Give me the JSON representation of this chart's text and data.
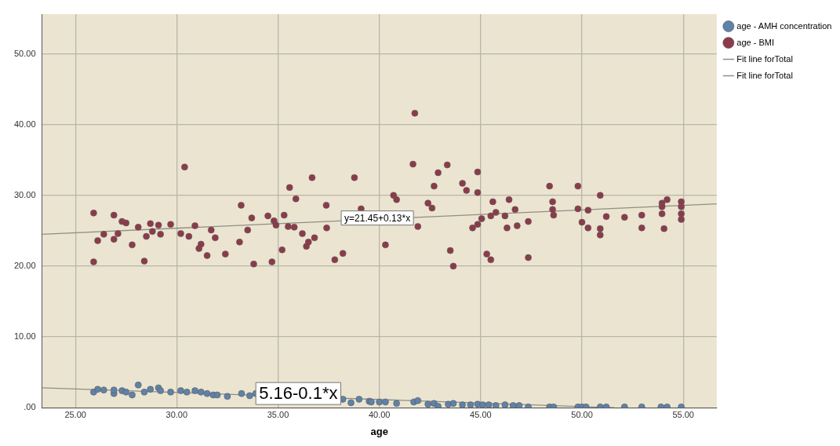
{
  "chart_data": {
    "type": "scatter",
    "xlabel": "age",
    "xlim": [
      23.35,
      56.65
    ],
    "ylim": [
      0,
      55.6
    ],
    "xticks": [
      {
        "value": 25,
        "label": "25.00"
      },
      {
        "value": 30,
        "label": "30.00"
      },
      {
        "value": 35,
        "label": "35.00"
      },
      {
        "value": 40,
        "label": "40.00"
      },
      {
        "value": 45,
        "label": "45.00"
      },
      {
        "value": 50,
        "label": "50.00"
      },
      {
        "value": 55,
        "label": "55.00"
      }
    ],
    "yticks": [
      {
        "value": 0,
        "label": ".00"
      },
      {
        "value": 10,
        "label": "10.00"
      },
      {
        "value": 20,
        "label": "20.00"
      },
      {
        "value": 30,
        "label": "30.00"
      },
      {
        "value": 40,
        "label": "40.00"
      },
      {
        "value": 50,
        "label": "50.00"
      }
    ],
    "grid": true,
    "legend": "top right",
    "marker": "circle",
    "series": [
      {
        "name": "age - AMH concentration",
        "color": "#5f82a8",
        "x": [
          25.9,
          26.1,
          26.4,
          26.9,
          26.9,
          27.3,
          27.5,
          27.8,
          28.1,
          28.4,
          28.7,
          29.1,
          29.2,
          29.7,
          30.2,
          30.5,
          30.9,
          31.2,
          31.5,
          31.8,
          32.0,
          32.5,
          33.2,
          33.6,
          33.9,
          38.2,
          38.6,
          39.0,
          39.5,
          39.6,
          40.0,
          40.3,
          40.85,
          41.7,
          41.9,
          42.4,
          42.7,
          42.9,
          43.4,
          43.65,
          44.1,
          44.5,
          44.85,
          45.1,
          45.4,
          45.75,
          46.2,
          46.6,
          46.9,
          47.35,
          48.4,
          48.6,
          49.8,
          50.0,
          50.2,
          50.9,
          51.2,
          52.1,
          52.95,
          53.9,
          54.2,
          54.9
        ],
        "values": [
          2.2,
          2.6,
          2.5,
          2.0,
          2.5,
          2.4,
          2.2,
          1.8,
          3.2,
          2.2,
          2.6,
          2.8,
          2.4,
          2.2,
          2.4,
          2.2,
          2.4,
          2.2,
          2.0,
          1.8,
          1.8,
          1.6,
          2.0,
          1.7,
          2.0,
          1.2,
          0.7,
          1.2,
          0.9,
          0.8,
          0.8,
          0.8,
          0.6,
          0.8,
          1.0,
          0.5,
          0.6,
          0.2,
          0.5,
          0.6,
          0.4,
          0.4,
          0.5,
          0.4,
          0.4,
          0.3,
          0.4,
          0.3,
          0.3,
          0.1,
          0.1,
          0.1,
          0.1,
          0.1,
          0.1,
          0.1,
          0.1,
          0.1,
          0.1,
          0.1,
          0.1,
          0.1
        ]
      },
      {
        "name": "age - BMI",
        "color": "#8c3b4b",
        "x": [
          30.39,
          36.68,
          38.77,
          35.57,
          35.88,
          33.18,
          37.38,
          25.9,
          26.9,
          27.3,
          27.5,
          28.1,
          28.7,
          29.1,
          29.7,
          30.9,
          31.7,
          33.5,
          33.7,
          34.5,
          34.8,
          34.9,
          35.3,
          35.5,
          35.8,
          37.4,
          39.1,
          40.7,
          25.9,
          26.1,
          26.4,
          26.9,
          27.1,
          27.8,
          28.5,
          28.4,
          28.8,
          29.2,
          30.2,
          30.6,
          31.2,
          31.1,
          31.5,
          31.9,
          32.4,
          33.1,
          33.8,
          34.7,
          35.2,
          36.2,
          36.4,
          36.5,
          36.8,
          37.8,
          38.2,
          40.3,
          41.75,
          41.66,
          42.9,
          43.35,
          44.85,
          42.7,
          44.1,
          44.3,
          44.85,
          40.85,
          42.4,
          42.6,
          41.9,
          45.6,
          46.4,
          46.7,
          46.2,
          45.75,
          45.5,
          45.05,
          44.85,
          44.6,
          46.3,
          46.8,
          47.35,
          48.4,
          49.8,
          50.9,
          48.55,
          48.55,
          48.6,
          49.8,
          50.3,
          50.0,
          50.3,
          50.9,
          50.9,
          51.2,
          52.1,
          52.95,
          52.95,
          53.95,
          54.2,
          53.95,
          53.95,
          54.05,
          54.9,
          54.9,
          54.9,
          54.9,
          43.5,
          43.65,
          45.3,
          45.5,
          47.35
        ],
        "values": [
          34.0,
          32.5,
          32.5,
          31.1,
          29.5,
          28.6,
          28.6,
          27.5,
          27.2,
          26.3,
          26.1,
          25.5,
          26.0,
          25.8,
          25.9,
          25.7,
          25.1,
          25.1,
          26.8,
          27.1,
          26.4,
          25.8,
          27.2,
          25.6,
          25.5,
          25.4,
          28.1,
          30.0,
          20.6,
          23.6,
          24.5,
          23.8,
          24.6,
          23.0,
          24.2,
          20.7,
          24.9,
          24.5,
          24.6,
          24.2,
          23.1,
          22.5,
          21.5,
          24.0,
          21.7,
          23.4,
          20.3,
          20.6,
          22.3,
          24.6,
          22.8,
          23.4,
          24.0,
          20.9,
          21.8,
          23.0,
          41.6,
          34.4,
          33.2,
          34.3,
          33.3,
          31.3,
          31.7,
          30.7,
          30.4,
          29.4,
          28.9,
          28.2,
          25.6,
          29.1,
          29.4,
          28.0,
          27.1,
          27.6,
          27.1,
          26.7,
          25.9,
          25.4,
          25.4,
          25.7,
          26.3,
          31.3,
          31.3,
          30.0,
          29.1,
          28.0,
          27.2,
          28.1,
          27.9,
          26.2,
          25.4,
          25.3,
          24.4,
          27.0,
          26.9,
          27.2,
          25.4,
          28.9,
          29.4,
          28.4,
          27.4,
          25.3,
          29.1,
          28.4,
          27.4,
          26.6,
          22.2,
          20.0,
          21.7,
          20.9,
          21.2
        ]
      },
      {
        "type": "line",
        "name": "Fit line forTotal",
        "color": "#8f8f86",
        "x": [
          23.35,
          51.6
        ],
        "values": [
          2.8,
          0
        ],
        "marker": "none"
      },
      {
        "type": "line",
        "name": "Fit line forTotal",
        "color": "#8f8f86",
        "x": [
          23.35,
          56.65
        ],
        "values": [
          24.5,
          28.8
        ],
        "marker": "none"
      }
    ],
    "annotations": [
      {
        "text": "y=21.45+0.13*x",
        "x": 39.9,
        "y": 26.8
      },
      {
        "text": "5.16-0.1*x",
        "x": 36.0,
        "y": 2.0
      }
    ]
  }
}
